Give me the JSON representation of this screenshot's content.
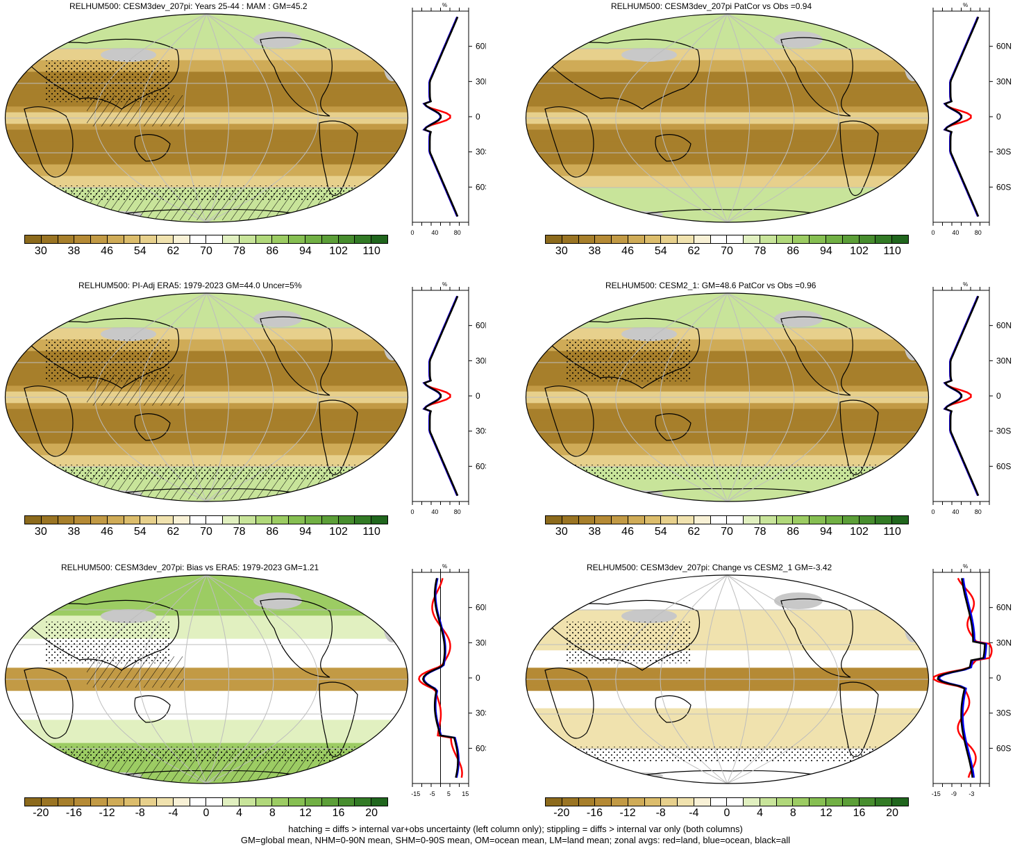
{
  "panels": [
    {
      "title": "RELHUM500: CESM3dev_207pi: Years 25-44 : MAM : GM=45.2",
      "kind": "abs",
      "hatch": true,
      "stipple": true
    },
    {
      "title": "RELHUM500: CESM3dev_207pi PatCor vs Obs =0.94",
      "kind": "abs",
      "hatch": false,
      "stipple": false
    },
    {
      "title": "RELHUM500: PI-Adj ERA5: 1979-2023 GM=44.0 Uncer=5%",
      "kind": "abs",
      "hatch": true,
      "stipple": true
    },
    {
      "title": "RELHUM500: CESM2_1: GM=48.6 PatCor vs Obs =0.96",
      "kind": "abs",
      "hatch": false,
      "stipple": true
    },
    {
      "title": "RELHUM500: CESM3dev_207pi: Bias vs ERA5: 1979-2023 GM=1.21",
      "kind": "diff",
      "hatch": true,
      "stipple": true
    },
    {
      "title": "RELHUM500: CESM3dev_207pi: Change vs CESM2_1 GM=-3.42",
      "kind": "diff",
      "hatch": false,
      "stipple": true
    }
  ],
  "colorbars": {
    "abs": {
      "labels": [
        "30",
        "38",
        "46",
        "54",
        "62",
        "70",
        "78",
        "86",
        "94",
        "102",
        "110"
      ],
      "colors": [
        "#8c6a1c",
        "#9a7423",
        "#a77f2b",
        "#b58a35",
        "#c29a45",
        "#cfab57",
        "#dcbd6c",
        "#e7d08c",
        "#f0e2ae",
        "#f8f1d6",
        "#ffffff",
        "#ffffff",
        "#e1f0c0",
        "#c8e49a",
        "#b0d87a",
        "#9ccc63",
        "#86bf52",
        "#71b044",
        "#5c9f38",
        "#478d2e",
        "#327a25",
        "#20661d"
      ]
    },
    "diff": {
      "labels": [
        "-20",
        "-16",
        "-12",
        "-8",
        "-4",
        "0",
        "4",
        "8",
        "12",
        "16",
        "20"
      ],
      "colors": [
        "#8c6a1c",
        "#9a7423",
        "#a77f2b",
        "#b58a35",
        "#c29a45",
        "#cfab57",
        "#dcbd6c",
        "#e7d08c",
        "#f0e2ae",
        "#f8f1d6",
        "#ffffff",
        "#ffffff",
        "#e1f0c0",
        "#c8e49a",
        "#b0d87a",
        "#9ccc63",
        "#86bf52",
        "#71b044",
        "#5c9f38",
        "#478d2e",
        "#327a25",
        "#20661d"
      ]
    }
  },
  "profiles": {
    "unit_label": "%",
    "lat_labels": [
      "60N",
      "30N",
      "0",
      "30S",
      "60S"
    ],
    "lat_values": [
      60,
      30,
      0,
      -30,
      -60
    ],
    "abs_x_labels": [
      "0",
      "40",
      "80"
    ],
    "abs_x_values": [
      0,
      40,
      80
    ],
    "abs_xlim": [
      0,
      100
    ],
    "bias_x_labels": [
      "-15",
      "-5",
      "5",
      "15"
    ],
    "bias_x_values": [
      -15,
      -5,
      5,
      15
    ],
    "bias_xlim": [
      -17,
      17
    ],
    "change_x_labels": [
      "-15",
      "-9",
      "-3"
    ],
    "change_x_values": [
      -15,
      -9,
      -3
    ],
    "change_xlim": [
      -16,
      3
    ]
  },
  "colors": {
    "land": "#ff0000",
    "ocean": "#0000ff",
    "all": "#000000",
    "missing": "#c8c8c8",
    "coast": "#000000"
  },
  "footer": {
    "line1": "hatching = diffs > internal var+obs uncertainty (left column only); stippling = diffs > internal var only (both columns)",
    "line2": "GM=global mean, NHM=0-90N mean, SHM=0-90S mean, OM=ocean mean, LM=land mean; zonal avgs: red=land, blue=ocean, black=all"
  }
}
